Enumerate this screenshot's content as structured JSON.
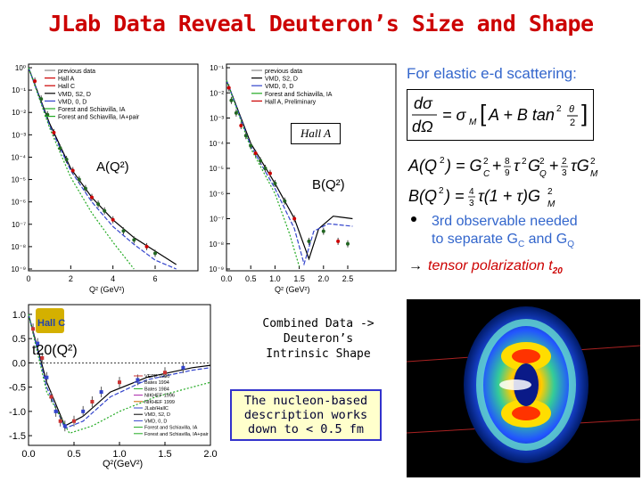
{
  "title": "JLab Data Reveal Deuteron’s Size and Shape",
  "chart_data": [
    {
      "type": "scatter",
      "name_label": "A(Q²)",
      "xlabel": "Q² (GeV²)",
      "x_ticks": [
        "0",
        "2",
        "4",
        "6"
      ],
      "y_ticks": [
        "10⁰",
        "10⁻¹",
        "10⁻²",
        "10⁻³",
        "10⁻⁴",
        "10⁻⁵",
        "10⁻⁶",
        "10⁻⁷",
        "10⁻⁸",
        "10⁻⁹"
      ],
      "yscale": "log",
      "legend": [
        "previous data",
        "Hall A",
        "Hall C",
        "VMD, S2, D",
        "VMD, 0, D",
        "Forest and Schiavilla, IA",
        "Forest and Schiavilla, IA+pair"
      ],
      "points": [
        [
          0.3,
          -0.6
        ],
        [
          0.6,
          -1.4
        ],
        [
          0.9,
          -2.1
        ],
        [
          1.2,
          -2.9
        ],
        [
          1.5,
          -3.6
        ],
        [
          1.8,
          -4.1
        ],
        [
          2.1,
          -4.6
        ],
        [
          2.4,
          -5.0
        ],
        [
          2.7,
          -5.4
        ],
        [
          3.0,
          -5.8
        ],
        [
          3.3,
          -6.1
        ],
        [
          3.6,
          -6.4
        ],
        [
          4.0,
          -6.8
        ],
        [
          4.5,
          -7.3
        ],
        [
          5.0,
          -7.7
        ],
        [
          5.6,
          -8.0
        ],
        [
          6.0,
          -8.3
        ]
      ]
    },
    {
      "type": "scatter",
      "name_label": "B(Q²)",
      "xlabel": "Q² (GeV²)",
      "x_ticks": [
        "0.0",
        "0.5",
        "1.0",
        "1.5",
        "2.0",
        "2.5"
      ],
      "y_ticks": [
        "10⁻¹",
        "10⁻²",
        "10⁻³",
        "10⁻⁴",
        "10⁻⁵",
        "10⁻⁶",
        "10⁻⁷",
        "10⁻⁸",
        "10⁻⁹"
      ],
      "yscale": "log",
      "legend": [
        "previous data",
        "VMD, S2, D",
        "VMD, 0, D",
        "Forest and Schiavilla, IA",
        "Hall A, Preliminary"
      ],
      "annotation": "Hall A",
      "points": [
        [
          0.05,
          -1.8
        ],
        [
          0.1,
          -2.3
        ],
        [
          0.2,
          -2.8
        ],
        [
          0.3,
          -3.3
        ],
        [
          0.4,
          -3.7
        ],
        [
          0.5,
          -4.1
        ],
        [
          0.6,
          -4.4
        ],
        [
          0.7,
          -4.7
        ],
        [
          0.8,
          -5.0
        ],
        [
          0.9,
          -5.2
        ],
        [
          1.0,
          -5.6
        ],
        [
          1.2,
          -6.3
        ],
        [
          1.4,
          -7.0
        ],
        [
          1.7,
          -7.9
        ],
        [
          2.0,
          -7.5
        ],
        [
          2.3,
          -7.9
        ],
        [
          2.5,
          -8.0
        ]
      ]
    },
    {
      "type": "scatter",
      "name_label": "t20(Q²)",
      "xlabel": "Q²(GeV²)",
      "x_ticks": [
        "0.0",
        "0.5",
        "1.0",
        "1.5",
        "2.0"
      ],
      "y_ticks": [
        "1.0",
        "0.5",
        "0.0",
        "-0.5",
        "-1.0",
        "-1.5"
      ],
      "ylim": [
        -1.7,
        1.2
      ],
      "legend": [
        "VEPP 1990",
        "Bates 1994",
        "Bates 1984",
        "NIKHEF 1996",
        "NIKHEF 1999",
        "JLab/HallC",
        "VMD, S2, D",
        "VMD, 0, D",
        "Forest and Schiavilla, IA",
        "Forest and Schiavilla, IA+pair"
      ],
      "points": [
        [
          0.05,
          0.7
        ],
        [
          0.1,
          0.4
        ],
        [
          0.15,
          0.1
        ],
        [
          0.2,
          -0.3
        ],
        [
          0.25,
          -0.7
        ],
        [
          0.3,
          -1.0
        ],
        [
          0.35,
          -1.2
        ],
        [
          0.4,
          -1.3
        ],
        [
          0.5,
          -1.2
        ],
        [
          0.6,
          -1.0
        ],
        [
          0.7,
          -0.8
        ],
        [
          0.8,
          -0.6
        ],
        [
          1.0,
          -0.4
        ],
        [
          1.2,
          -0.35
        ],
        [
          1.5,
          -0.2
        ],
        [
          1.7,
          -0.1
        ]
      ]
    }
  ],
  "right_text": {
    "heading": "For elastic e-d scattering:",
    "bullet": "3rd observable needed to separate G",
    "bullet_line1": "3rd observable needed",
    "bullet_line2": "to separate G",
    "sub_c": "C",
    "and": " and G",
    "sub_q": "Q",
    "arrow": "→",
    "tensor": "tensor polarization t",
    "tensor_sub": "20"
  },
  "center_text": {
    "combined": [
      "Combined Data ->",
      "Deuteron’s",
      "Intrinsic Shape"
    ],
    "nucleon": [
      "The nucleon-based",
      "description works",
      "down to < 0.5 fm"
    ]
  },
  "logo_text": "Hall C"
}
